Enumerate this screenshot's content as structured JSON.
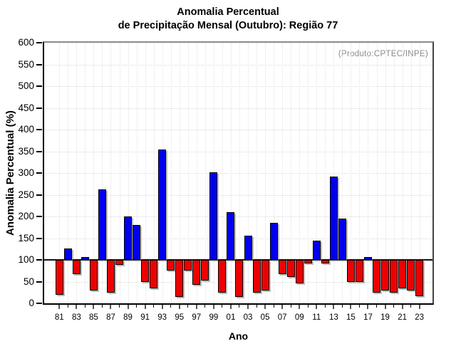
{
  "title": {
    "line1": "Anomalia Percentual",
    "line2": "de Precipitação Mensal (Outubro): Região 77"
  },
  "annotation": "(Produto:CPTEC/INPE)",
  "chart_data": {
    "type": "bar",
    "title": "Anomalia Percentual de Precipitação Mensal (Outubro): Região 77",
    "xlabel": "Ano",
    "ylabel": "Anomalia Percentual (%)",
    "ylim": [
      0,
      600
    ],
    "ytick_step": 50,
    "baseline": 100,
    "grid": "dotted",
    "legend_position": "none",
    "x_labels_every": 2,
    "categories": [
      "81",
      "82",
      "83",
      "84",
      "85",
      "86",
      "87",
      "88",
      "89",
      "90",
      "91",
      "92",
      "93",
      "94",
      "95",
      "96",
      "97",
      "98",
      "99",
      "00",
      "01",
      "02",
      "03",
      "04",
      "05",
      "06",
      "07",
      "08",
      "09",
      "10",
      "11",
      "12",
      "13",
      "14",
      "15",
      "16",
      "17",
      "18",
      "19",
      "20",
      "21",
      "22",
      "23"
    ],
    "values": [
      20,
      127,
      67,
      106,
      30,
      262,
      25,
      89,
      200,
      180,
      49,
      34,
      354,
      76,
      15,
      76,
      43,
      52,
      302,
      25,
      210,
      15,
      155,
      25,
      29,
      185,
      68,
      60,
      46,
      92,
      145,
      91,
      292,
      195,
      49,
      50,
      107,
      25,
      30,
      24,
      35,
      29,
      17
    ],
    "colors": {
      "above_baseline": "#0000ee",
      "below_baseline": "#ee0000"
    }
  }
}
